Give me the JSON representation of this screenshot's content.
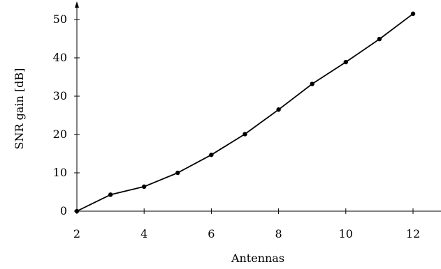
{
  "chart_data": {
    "type": "line",
    "title": "",
    "xlabel": "Antennas",
    "ylabel": "SNR gain [dB]",
    "xlim": [
      2,
      12.8
    ],
    "ylim": [
      0,
      55
    ],
    "xticks": [
      2,
      4,
      6,
      8,
      10,
      12
    ],
    "yticks": [
      0,
      10,
      20,
      30,
      40,
      50
    ],
    "grid": false,
    "legend": "none",
    "series": [
      {
        "x": [
          2,
          3,
          4,
          5,
          6,
          7,
          8,
          9,
          10,
          11,
          12
        ],
        "y": [
          0,
          4.3,
          6.4,
          10.0,
          14.7,
          20.1,
          26.5,
          33.2,
          38.9,
          44.9,
          51.5
        ]
      }
    ]
  }
}
